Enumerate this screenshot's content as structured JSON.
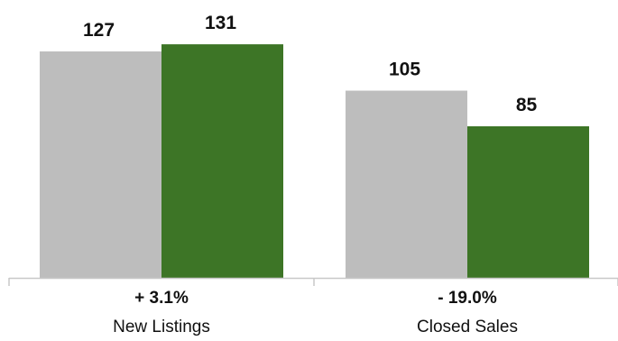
{
  "chart_data": {
    "type": "bar",
    "categories": [
      "New Listings",
      "Closed Sales"
    ],
    "change_labels": [
      "+ 3.1%",
      "- 19.0%"
    ],
    "series": [
      {
        "values": [
          127,
          105
        ],
        "color": "#bdbdbd"
      },
      {
        "values": [
          131,
          85
        ],
        "color": "#3d7526"
      }
    ],
    "ylim": [
      0,
      140
    ],
    "grid": false,
    "legend": "none",
    "title": "",
    "xlabel": "",
    "ylabel": ""
  }
}
